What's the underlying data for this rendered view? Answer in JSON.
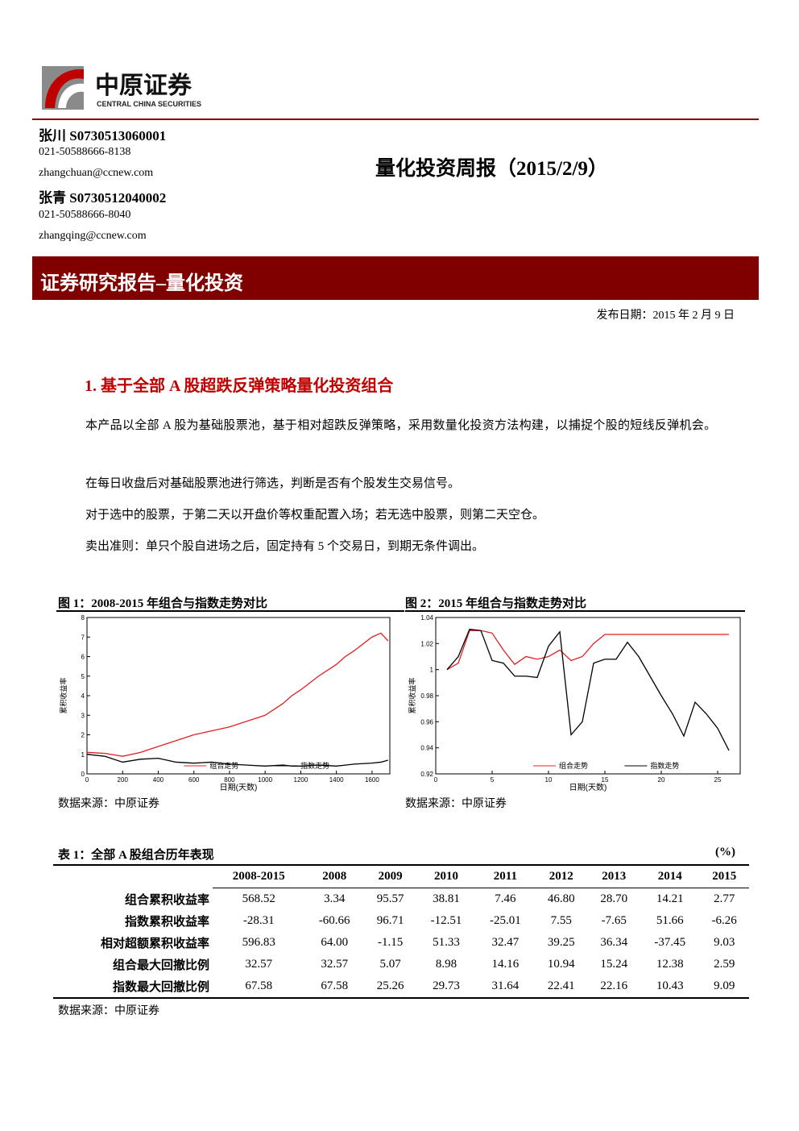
{
  "header": {
    "logo_cn": "中原证券",
    "logo_en": "CENTRAL CHINA SECURITIES"
  },
  "authors": [
    {
      "name": "张川 S0730513060001",
      "phone": "021-50588666-8138",
      "email": "zhangchuan@ccnew.com"
    },
    {
      "name": "张青 S0730512040002",
      "phone": "021-50588666-8040",
      "email": "zhangqing@ccnew.com"
    }
  ],
  "title": "量化投资周报（2015/2/9）",
  "banner": "证券研究报告–量化投资",
  "date": "发布日期：2015 年 2 月 9 日",
  "section": {
    "heading": "1. 基于全部 A 股超跌反弹策略量化投资组合",
    "paragraphs": [
      "本产品以全部 A 股为基础股票池，基于相对超跌反弹策略，采用数量化投资方法构建，以捕捉个股的短线反弹机会。",
      "在每日收盘后对基础股票池进行筛选，判断是否有个股发生交易信号。",
      "对于选中的股票，于第二天以开盘价等权重配置入场；若无选中股票，则第二天空仓。",
      "卖出准则：单只个股自进场之后，固定持有 5 个交易日，到期无条件调出。"
    ]
  },
  "figures": [
    {
      "caption": "图 1：2008-2015 年组合与指数走势对比",
      "source": "数据来源：中原证券",
      "chart": {
        "type": "line",
        "xlabel": "日期(天数)",
        "ylabel": "累积收益率",
        "xlim": [
          0,
          1700
        ],
        "ylim": [
          0,
          8
        ],
        "xticks": [
          0,
          200,
          400,
          600,
          800,
          1000,
          1200,
          1400,
          1600
        ],
        "yticks": [
          0,
          1,
          2,
          3,
          4,
          5,
          6,
          7,
          8
        ],
        "x": [
          0,
          100,
          200,
          300,
          400,
          500,
          600,
          700,
          800,
          900,
          1000,
          1100,
          1150,
          1200,
          1300,
          1400,
          1450,
          1500,
          1600,
          1650,
          1690
        ],
        "series": [
          {
            "name": "组合走势",
            "color": "#e02020",
            "values": [
              1.1,
              1.05,
              0.9,
              1.1,
              1.4,
              1.7,
              2.0,
              2.2,
              2.4,
              2.7,
              3.0,
              3.6,
              4.0,
              4.3,
              5.0,
              5.6,
              6.0,
              6.3,
              7.0,
              7.2,
              6.8
            ]
          },
          {
            "name": "指数走势",
            "color": "#000000",
            "values": [
              1.0,
              0.9,
              0.6,
              0.75,
              0.8,
              0.6,
              0.55,
              0.6,
              0.5,
              0.45,
              0.4,
              0.45,
              0.4,
              0.4,
              0.45,
              0.4,
              0.45,
              0.5,
              0.55,
              0.6,
              0.7
            ]
          }
        ]
      }
    },
    {
      "caption": "图 2：2015 年组合与指数走势对比",
      "source": "数据来源：中原证券",
      "chart": {
        "type": "line",
        "xlabel": "日期(天数)",
        "ylabel": "累积收益率",
        "xlim": [
          0,
          27
        ],
        "ylim": [
          0.92,
          1.04
        ],
        "xticks": [
          0,
          5,
          10,
          15,
          20,
          25
        ],
        "yticks": [
          0.92,
          0.94,
          0.96,
          0.98,
          1,
          1.02,
          1.04
        ],
        "x": [
          1,
          2,
          3,
          4,
          5,
          6,
          7,
          8,
          9,
          10,
          11,
          12,
          13,
          14,
          15,
          16,
          17,
          18,
          19,
          20,
          21,
          22,
          23,
          24,
          25,
          26
        ],
        "series": [
          {
            "name": "组合走势",
            "color": "#e02020",
            "values": [
              1.0,
              1.005,
              1.03,
              1.03,
              1.028,
              1.015,
              1.004,
              1.01,
              1.008,
              1.01,
              1.015,
              1.007,
              1.01,
              1.02,
              1.027,
              1.027,
              1.027,
              1.027,
              1.027,
              1.027,
              1.027,
              1.027,
              1.027,
              1.027,
              1.027,
              1.027
            ]
          },
          {
            "name": "指数走势",
            "color": "#000000",
            "values": [
              1.0,
              1.01,
              1.031,
              1.03,
              1.007,
              1.005,
              0.995,
              0.995,
              0.994,
              1.018,
              1.029,
              0.95,
              0.96,
              1.005,
              1.008,
              1.008,
              1.021,
              1.01,
              0.995,
              0.98,
              0.966,
              0.949,
              0.975,
              0.966,
              0.955,
              0.938
            ]
          }
        ]
      }
    }
  ],
  "table": {
    "caption": "表 1：全部 A 股组合历年表现",
    "unit": "(%)",
    "columns": [
      "2008-2015",
      "2008",
      "2009",
      "2010",
      "2011",
      "2012",
      "2013",
      "2014",
      "2015"
    ],
    "rows": [
      {
        "label": "组合累积收益率",
        "cells": [
          "568.52",
          "3.34",
          "95.57",
          "38.81",
          "7.46",
          "46.80",
          "28.70",
          "14.21",
          "2.77"
        ]
      },
      {
        "label": "指数累积收益率",
        "cells": [
          "-28.31",
          "-60.66",
          "96.71",
          "-12.51",
          "-25.01",
          "7.55",
          "-7.65",
          "51.66",
          "-6.26"
        ]
      },
      {
        "label": "相对超额累积收益率",
        "cells": [
          "596.83",
          "64.00",
          "-1.15",
          "51.33",
          "32.47",
          "39.25",
          "36.34",
          "-37.45",
          "9.03"
        ]
      },
      {
        "label": "组合最大回撤比例",
        "cells": [
          "32.57",
          "32.57",
          "5.07",
          "8.98",
          "14.16",
          "10.94",
          "15.24",
          "12.38",
          "2.59"
        ]
      },
      {
        "label": "指数最大回撤比例",
        "cells": [
          "67.58",
          "67.58",
          "25.26",
          "29.73",
          "31.64",
          "22.41",
          "22.16",
          "10.43",
          "9.09"
        ]
      }
    ],
    "source": "数据来源：中原证券"
  }
}
